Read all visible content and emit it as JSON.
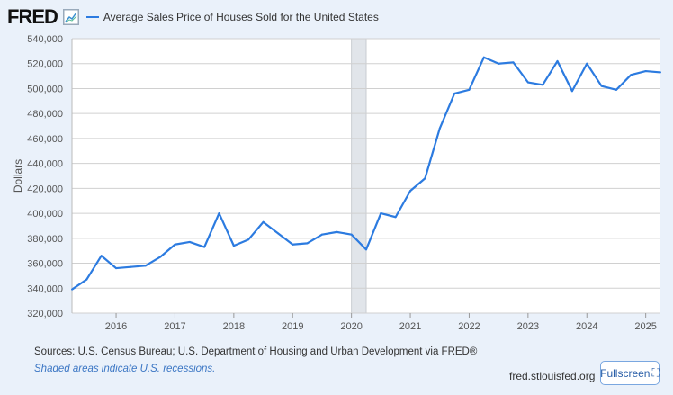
{
  "header": {
    "logo": "FRED",
    "logo_icon": "chart-line-icon"
  },
  "chart_data": {
    "type": "line",
    "title": "Average Sales Price of Houses Sold for the United States",
    "ylabel": "Dollars",
    "xlabel": "",
    "ylim": [
      320000,
      540000
    ],
    "xlim": [
      2015.25,
      2025.25
    ],
    "yticks": [
      "320,000",
      "340,000",
      "360,000",
      "380,000",
      "400,000",
      "420,000",
      "440,000",
      "460,000",
      "480,000",
      "500,000",
      "520,000",
      "540,000"
    ],
    "xticks": [
      "2016",
      "2017",
      "2018",
      "2019",
      "2020",
      "2021",
      "2022",
      "2023",
      "2024",
      "2025"
    ],
    "grid": true,
    "recessions": [
      [
        2020.0,
        2020.25
      ]
    ],
    "series": [
      {
        "name": "Average Sales Price of Houses Sold for the United States",
        "color": "#2c7be0",
        "x_start": 2015.25,
        "x_step": 0.25,
        "values": [
          339000,
          347000,
          366000,
          356000,
          357000,
          358000,
          365000,
          375000,
          377000,
          373000,
          400000,
          374000,
          379000,
          393000,
          384000,
          375000,
          376000,
          383000,
          385000,
          383000,
          371000,
          400000,
          397000,
          418000,
          428000,
          468000,
          496000,
          499000,
          525000,
          520000,
          521000,
          505000,
          503000,
          522000,
          498000,
          520000,
          502000,
          499000,
          511000,
          514000,
          513000
        ]
      }
    ]
  },
  "footer": {
    "sources": "Sources: U.S. Census Bureau; U.S. Department of Housing and Urban Development via FRED®",
    "note": "Shaded areas indicate U.S. recessions.",
    "site": "fred.stlouisfed.org",
    "fullscreen": "Fullscreen"
  }
}
